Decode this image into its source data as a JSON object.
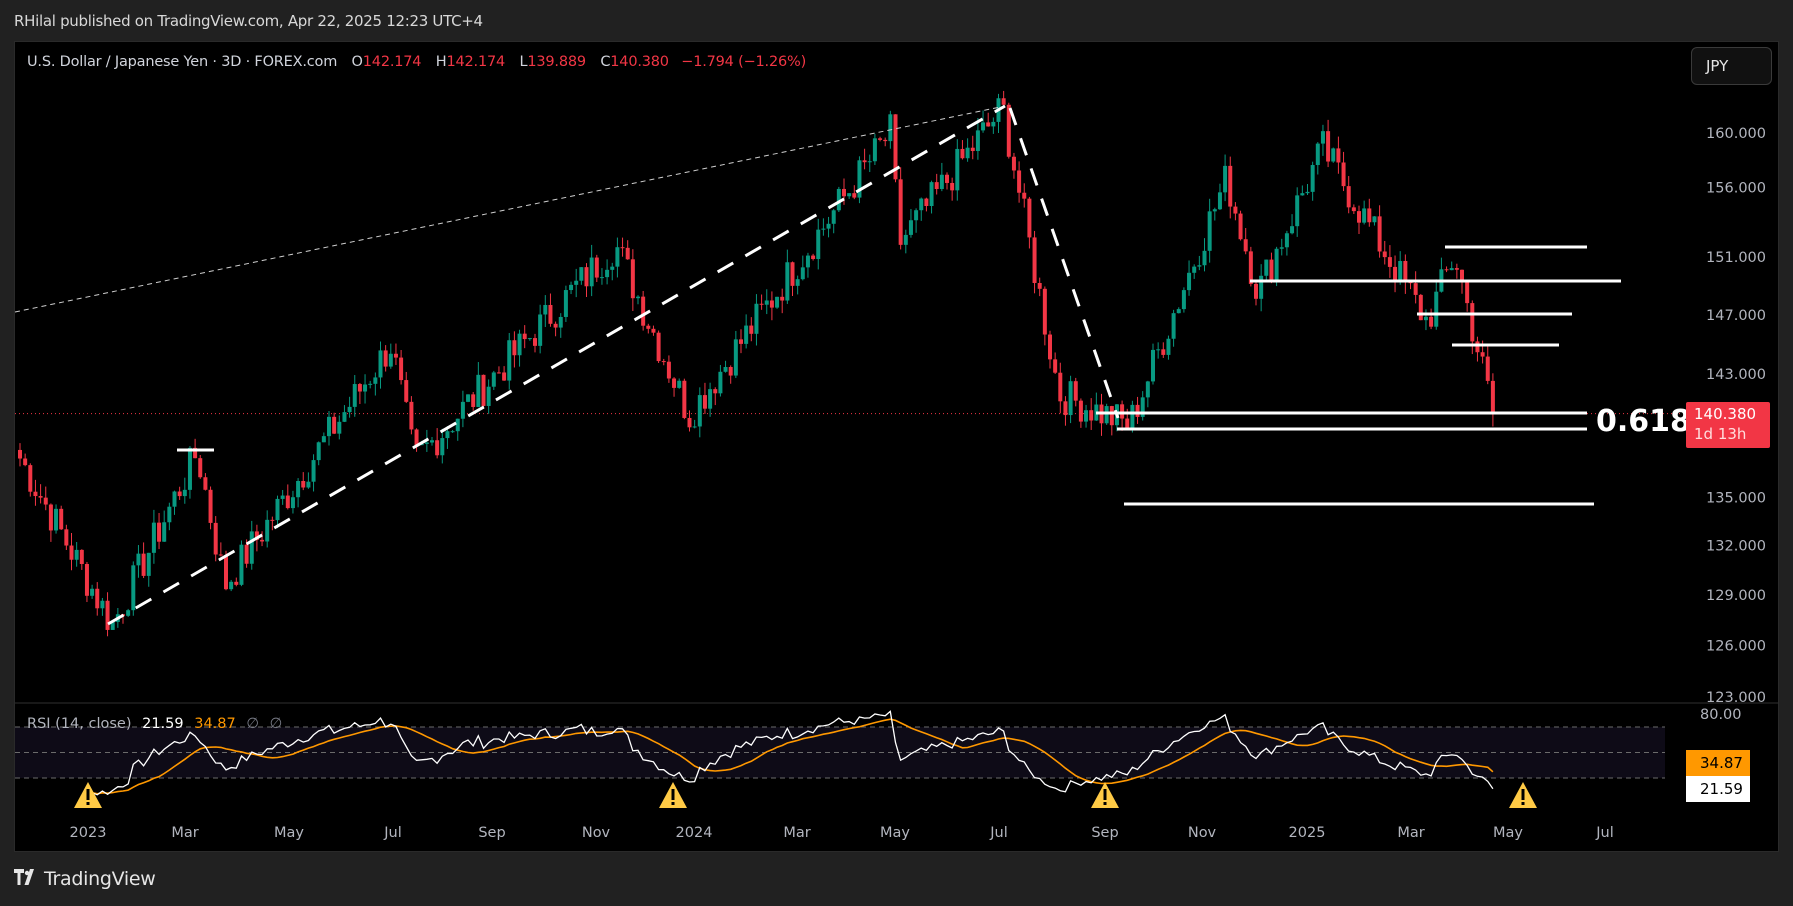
{
  "header": {
    "published_text": "RHilal published on TradingView.com, Apr 22, 2025 12:23 UTC+4"
  },
  "legend": {
    "symbol": "U.S. Dollar / Japanese Yen · 3D · FOREX.com",
    "open_label": "O",
    "open": "142.174",
    "high_label": "H",
    "high": "142.174",
    "low_label": "L",
    "low": "139.889",
    "close_label": "C",
    "close": "140.380",
    "change": "−1.794 (−1.26%)"
  },
  "currency_button": "JPY",
  "price_axis": {
    "ticks": [
      "160.000",
      "156.000",
      "151.000",
      "147.000",
      "143.000",
      "135.000",
      "132.000",
      "129.000",
      "126.000",
      "123.000"
    ],
    "current_price": "140.380",
    "countdown": "1d 13h"
  },
  "annotation": {
    "fib_label": "0.618"
  },
  "rsi": {
    "label": "RSI (14, close)",
    "value": "21.59",
    "ma_value": "34.87",
    "extra1": "∅",
    "extra2": "∅",
    "axis_top": "80.00"
  },
  "time_axis": {
    "labels": [
      "2023",
      "Mar",
      "May",
      "Jul",
      "Sep",
      "Nov",
      "2024",
      "Mar",
      "May",
      "Jul",
      "Sep",
      "Nov",
      "2025",
      "Mar",
      "May",
      "Jul"
    ]
  },
  "footer": {
    "brand": "TradingView"
  },
  "colors": {
    "up": "#089981",
    "down": "#f23645",
    "rsi_line": "#ffffff",
    "rsi_ma": "#ff9800",
    "warning": "#ffca45",
    "background": "#000000"
  },
  "chart_data": {
    "type": "candlestick",
    "title": "U.S. Dollar / Japanese Yen · 3D · FOREX.com",
    "scale": "log",
    "ylim": [
      122.5,
      163
    ],
    "yticks": [
      160,
      156,
      151,
      147,
      143,
      135,
      132,
      129,
      126,
      123
    ],
    "x_ticks": [
      "2023",
      "Mar",
      "May",
      "Jul",
      "Sep",
      "Nov",
      "2024",
      "Mar",
      "May",
      "Jul",
      "Sep",
      "Nov",
      "2025",
      "Mar",
      "May",
      "Jul"
    ],
    "current_price": 140.38,
    "key_points": [
      {
        "date": "2022-12",
        "price": 137.5,
        "note": "start"
      },
      {
        "date": "2023-01-16",
        "price": 127.2,
        "note": "low"
      },
      {
        "date": "2023-03-08",
        "price": 137.9,
        "note": "local high (marked)"
      },
      {
        "date": "2023-03-24",
        "price": 129.6,
        "note": "higher low"
      },
      {
        "date": "2023-06-30",
        "price": 145.0
      },
      {
        "date": "2023-07-14",
        "price": 137.3
      },
      {
        "date": "2023-11-13",
        "price": 151.9,
        "note": "high"
      },
      {
        "date": "2023-12-28",
        "price": 140.3,
        "note": "low"
      },
      {
        "date": "2024-04-29",
        "price": 160.2
      },
      {
        "date": "2024-05-03",
        "price": 151.9
      },
      {
        "date": "2024-07-03",
        "price": 161.9,
        "note": "peak"
      },
      {
        "date": "2024-08-05",
        "price": 141.7
      },
      {
        "date": "2024-09-16",
        "price": 139.6,
        "note": "low"
      },
      {
        "date": "2024-11-15",
        "price": 156.7
      },
      {
        "date": "2024-12-03",
        "price": 148.6
      },
      {
        "date": "2025-01-10",
        "price": 158.9,
        "note": "high"
      },
      {
        "date": "2025-03-11",
        "price": 146.5
      },
      {
        "date": "2025-03-28",
        "price": 151.2
      },
      {
        "date": "2025-04-22",
        "price": 140.38,
        "note": "last close"
      }
    ],
    "horizontal_levels": [
      151.2,
      149.4,
      147.3,
      145.2,
      140.4,
      139.6,
      135.2
    ],
    "fib_level": {
      "ratio": 0.618,
      "price": 139.6
    },
    "rsi": {
      "period": 14,
      "value": 21.59,
      "ma": 34.87,
      "levels": [
        70,
        50,
        30
      ],
      "divergence_warnings": [
        "2023-01",
        "2023-12",
        "2024-09",
        "2025-05"
      ]
    }
  }
}
